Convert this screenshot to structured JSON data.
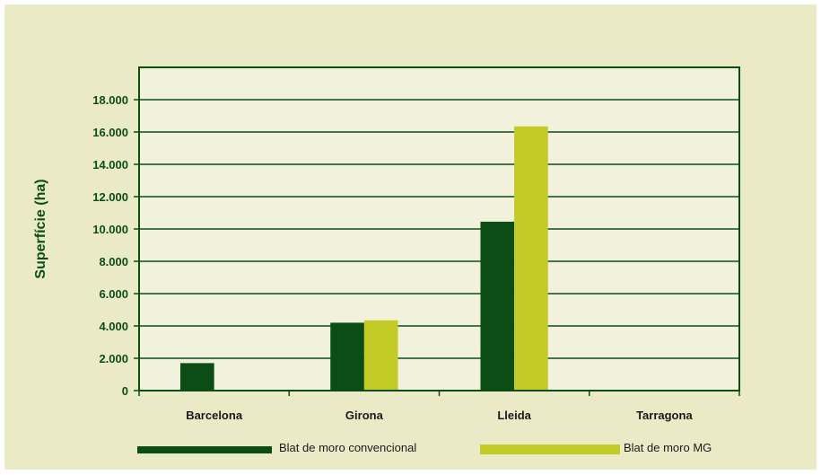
{
  "colors": {
    "background": "#eaeac6",
    "plot_area": "#f1f1dc",
    "axis": "#0b4d14",
    "conventional": "#0b4d14",
    "mg": "#c3cb27",
    "text": "#0b4d14"
  },
  "chart_data": {
    "type": "bar",
    "title": "",
    "xlabel": "",
    "ylabel": "Superfície (ha)",
    "categories": [
      "Barcelona",
      "Girona",
      "Lleida",
      "Tarragona"
    ],
    "series": [
      {
        "name": "Blat de moro convencional",
        "values": [
          1700,
          4200,
          10450,
          0
        ]
      },
      {
        "name": "Blat de moro MG",
        "values": [
          0,
          4350,
          16350,
          0
        ]
      }
    ],
    "ylim": [
      0,
      20000
    ],
    "yticks": [
      0,
      2000,
      4000,
      6000,
      8000,
      10000,
      12000,
      14000,
      16000,
      18000
    ],
    "ytick_labels": [
      "0",
      "2.000",
      "4.000",
      "6.000",
      "8.000",
      "10.000",
      "12.000",
      "14.000",
      "16.000",
      "18.000"
    ],
    "grid": "horizontal",
    "legend_position": "bottom"
  }
}
